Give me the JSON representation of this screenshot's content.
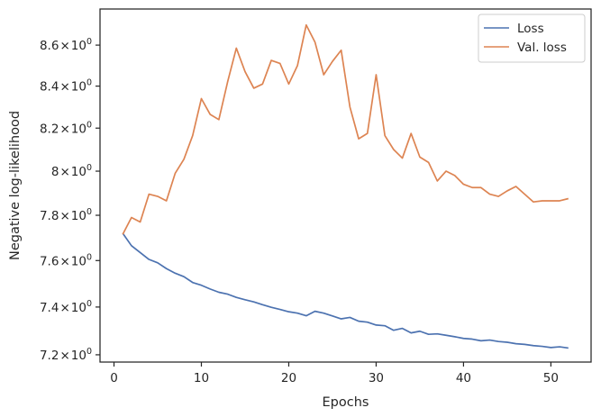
{
  "chart_data": {
    "type": "line",
    "title": "",
    "xlabel": "Epochs",
    "ylabel": "Negative log-likelihood",
    "xlim": [
      -1.6,
      54.6
    ],
    "ylim": [
      7.17,
      8.78
    ],
    "yscale": "log",
    "grid": false,
    "legend_position": "top-right",
    "x_ticks": [
      0,
      10,
      20,
      30,
      40,
      50
    ],
    "x_tick_labels": [
      "0",
      "10",
      "20",
      "30",
      "40",
      "50"
    ],
    "y_ticks": [
      7.2,
      7.4,
      7.6,
      7.8,
      8.0,
      8.2,
      8.4,
      8.6
    ],
    "y_tick_labels": [
      {
        "mantissa": "7.2",
        "times": "×",
        "base": "10",
        "exp": "0"
      },
      {
        "mantissa": "7.4",
        "times": "×",
        "base": "10",
        "exp": "0"
      },
      {
        "mantissa": "7.6",
        "times": "×",
        "base": "10",
        "exp": "0"
      },
      {
        "mantissa": "7.8",
        "times": "×",
        "base": "10",
        "exp": "0"
      },
      {
        "mantissa": "8",
        "times": "×",
        "base": "10",
        "exp": "0"
      },
      {
        "mantissa": "8.2",
        "times": "×",
        "base": "10",
        "exp": "0"
      },
      {
        "mantissa": "8.4",
        "times": "×",
        "base": "10",
        "exp": "0"
      },
      {
        "mantissa": "8.6",
        "times": "×",
        "base": "10",
        "exp": "0"
      }
    ],
    "x": [
      1,
      2,
      3,
      4,
      5,
      6,
      7,
      8,
      9,
      10,
      11,
      12,
      13,
      14,
      15,
      16,
      17,
      18,
      19,
      20,
      21,
      22,
      23,
      24,
      25,
      26,
      27,
      28,
      29,
      30,
      31,
      32,
      33,
      34,
      35,
      36,
      37,
      38,
      39,
      40,
      41,
      42,
      43,
      44,
      45,
      46,
      47,
      48,
      49,
      50,
      51,
      52
    ],
    "series": [
      {
        "name": "Loss",
        "color": "#4c72b0",
        "values": [
          7.72,
          7.665,
          7.635,
          7.605,
          7.59,
          7.565,
          7.545,
          7.53,
          7.505,
          7.493,
          7.477,
          7.463,
          7.455,
          7.441,
          7.431,
          7.422,
          7.41,
          7.399,
          7.39,
          7.38,
          7.374,
          7.363,
          7.382,
          7.374,
          7.362,
          7.35,
          7.356,
          7.34,
          7.336,
          7.324,
          7.321,
          7.302,
          7.31,
          7.291,
          7.298,
          7.285,
          7.287,
          7.281,
          7.275,
          7.268,
          7.265,
          7.258,
          7.261,
          7.255,
          7.252,
          7.246,
          7.243,
          7.238,
          7.235,
          7.23,
          7.233,
          7.228
        ]
      },
      {
        "name": "Val. loss",
        "color": "#dd8452",
        "values": [
          7.715,
          7.79,
          7.77,
          7.895,
          7.885,
          7.865,
          7.99,
          8.055,
          8.165,
          8.34,
          8.265,
          8.24,
          8.42,
          8.585,
          8.47,
          8.39,
          8.41,
          8.525,
          8.51,
          8.41,
          8.5,
          8.7,
          8.615,
          8.455,
          8.52,
          8.575,
          8.3,
          8.15,
          8.175,
          8.455,
          8.165,
          8.1,
          8.06,
          8.175,
          8.065,
          8.04,
          7.955,
          8.0,
          7.98,
          7.94,
          7.925,
          7.925,
          7.895,
          7.885,
          7.91,
          7.93,
          7.895,
          7.86,
          7.865,
          7.865,
          7.865,
          7.875
        ]
      }
    ]
  }
}
